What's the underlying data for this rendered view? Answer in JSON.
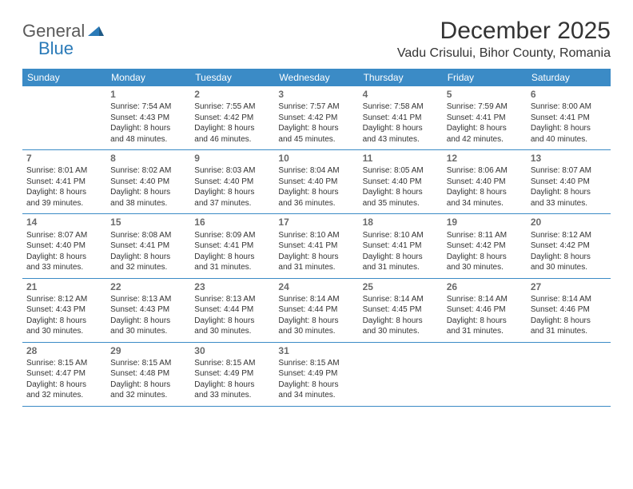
{
  "logo": {
    "text1": "General",
    "text2": "Blue"
  },
  "title": "December 2025",
  "location": "Vadu Crisului, Bihor County, Romania",
  "dow": [
    "Sunday",
    "Monday",
    "Tuesday",
    "Wednesday",
    "Thursday",
    "Friday",
    "Saturday"
  ],
  "colors": {
    "header_bg": "#3b8bc6",
    "header_text": "#ffffff",
    "rule": "#3b8bc6",
    "text": "#333333",
    "daynum": "#6a6a6a"
  },
  "weeks": [
    [
      null,
      {
        "n": "1",
        "sr": "Sunrise: 7:54 AM",
        "ss": "Sunset: 4:43 PM",
        "d1": "Daylight: 8 hours",
        "d2": "and 48 minutes."
      },
      {
        "n": "2",
        "sr": "Sunrise: 7:55 AM",
        "ss": "Sunset: 4:42 PM",
        "d1": "Daylight: 8 hours",
        "d2": "and 46 minutes."
      },
      {
        "n": "3",
        "sr": "Sunrise: 7:57 AM",
        "ss": "Sunset: 4:42 PM",
        "d1": "Daylight: 8 hours",
        "d2": "and 45 minutes."
      },
      {
        "n": "4",
        "sr": "Sunrise: 7:58 AM",
        "ss": "Sunset: 4:41 PM",
        "d1": "Daylight: 8 hours",
        "d2": "and 43 minutes."
      },
      {
        "n": "5",
        "sr": "Sunrise: 7:59 AM",
        "ss": "Sunset: 4:41 PM",
        "d1": "Daylight: 8 hours",
        "d2": "and 42 minutes."
      },
      {
        "n": "6",
        "sr": "Sunrise: 8:00 AM",
        "ss": "Sunset: 4:41 PM",
        "d1": "Daylight: 8 hours",
        "d2": "and 40 minutes."
      }
    ],
    [
      {
        "n": "7",
        "sr": "Sunrise: 8:01 AM",
        "ss": "Sunset: 4:41 PM",
        "d1": "Daylight: 8 hours",
        "d2": "and 39 minutes."
      },
      {
        "n": "8",
        "sr": "Sunrise: 8:02 AM",
        "ss": "Sunset: 4:40 PM",
        "d1": "Daylight: 8 hours",
        "d2": "and 38 minutes."
      },
      {
        "n": "9",
        "sr": "Sunrise: 8:03 AM",
        "ss": "Sunset: 4:40 PM",
        "d1": "Daylight: 8 hours",
        "d2": "and 37 minutes."
      },
      {
        "n": "10",
        "sr": "Sunrise: 8:04 AM",
        "ss": "Sunset: 4:40 PM",
        "d1": "Daylight: 8 hours",
        "d2": "and 36 minutes."
      },
      {
        "n": "11",
        "sr": "Sunrise: 8:05 AM",
        "ss": "Sunset: 4:40 PM",
        "d1": "Daylight: 8 hours",
        "d2": "and 35 minutes."
      },
      {
        "n": "12",
        "sr": "Sunrise: 8:06 AM",
        "ss": "Sunset: 4:40 PM",
        "d1": "Daylight: 8 hours",
        "d2": "and 34 minutes."
      },
      {
        "n": "13",
        "sr": "Sunrise: 8:07 AM",
        "ss": "Sunset: 4:40 PM",
        "d1": "Daylight: 8 hours",
        "d2": "and 33 minutes."
      }
    ],
    [
      {
        "n": "14",
        "sr": "Sunrise: 8:07 AM",
        "ss": "Sunset: 4:40 PM",
        "d1": "Daylight: 8 hours",
        "d2": "and 33 minutes."
      },
      {
        "n": "15",
        "sr": "Sunrise: 8:08 AM",
        "ss": "Sunset: 4:41 PM",
        "d1": "Daylight: 8 hours",
        "d2": "and 32 minutes."
      },
      {
        "n": "16",
        "sr": "Sunrise: 8:09 AM",
        "ss": "Sunset: 4:41 PM",
        "d1": "Daylight: 8 hours",
        "d2": "and 31 minutes."
      },
      {
        "n": "17",
        "sr": "Sunrise: 8:10 AM",
        "ss": "Sunset: 4:41 PM",
        "d1": "Daylight: 8 hours",
        "d2": "and 31 minutes."
      },
      {
        "n": "18",
        "sr": "Sunrise: 8:10 AM",
        "ss": "Sunset: 4:41 PM",
        "d1": "Daylight: 8 hours",
        "d2": "and 31 minutes."
      },
      {
        "n": "19",
        "sr": "Sunrise: 8:11 AM",
        "ss": "Sunset: 4:42 PM",
        "d1": "Daylight: 8 hours",
        "d2": "and 30 minutes."
      },
      {
        "n": "20",
        "sr": "Sunrise: 8:12 AM",
        "ss": "Sunset: 4:42 PM",
        "d1": "Daylight: 8 hours",
        "d2": "and 30 minutes."
      }
    ],
    [
      {
        "n": "21",
        "sr": "Sunrise: 8:12 AM",
        "ss": "Sunset: 4:43 PM",
        "d1": "Daylight: 8 hours",
        "d2": "and 30 minutes."
      },
      {
        "n": "22",
        "sr": "Sunrise: 8:13 AM",
        "ss": "Sunset: 4:43 PM",
        "d1": "Daylight: 8 hours",
        "d2": "and 30 minutes."
      },
      {
        "n": "23",
        "sr": "Sunrise: 8:13 AM",
        "ss": "Sunset: 4:44 PM",
        "d1": "Daylight: 8 hours",
        "d2": "and 30 minutes."
      },
      {
        "n": "24",
        "sr": "Sunrise: 8:14 AM",
        "ss": "Sunset: 4:44 PM",
        "d1": "Daylight: 8 hours",
        "d2": "and 30 minutes."
      },
      {
        "n": "25",
        "sr": "Sunrise: 8:14 AM",
        "ss": "Sunset: 4:45 PM",
        "d1": "Daylight: 8 hours",
        "d2": "and 30 minutes."
      },
      {
        "n": "26",
        "sr": "Sunrise: 8:14 AM",
        "ss": "Sunset: 4:46 PM",
        "d1": "Daylight: 8 hours",
        "d2": "and 31 minutes."
      },
      {
        "n": "27",
        "sr": "Sunrise: 8:14 AM",
        "ss": "Sunset: 4:46 PM",
        "d1": "Daylight: 8 hours",
        "d2": "and 31 minutes."
      }
    ],
    [
      {
        "n": "28",
        "sr": "Sunrise: 8:15 AM",
        "ss": "Sunset: 4:47 PM",
        "d1": "Daylight: 8 hours",
        "d2": "and 32 minutes."
      },
      {
        "n": "29",
        "sr": "Sunrise: 8:15 AM",
        "ss": "Sunset: 4:48 PM",
        "d1": "Daylight: 8 hours",
        "d2": "and 32 minutes."
      },
      {
        "n": "30",
        "sr": "Sunrise: 8:15 AM",
        "ss": "Sunset: 4:49 PM",
        "d1": "Daylight: 8 hours",
        "d2": "and 33 minutes."
      },
      {
        "n": "31",
        "sr": "Sunrise: 8:15 AM",
        "ss": "Sunset: 4:49 PM",
        "d1": "Daylight: 8 hours",
        "d2": "and 34 minutes."
      },
      null,
      null,
      null
    ]
  ]
}
